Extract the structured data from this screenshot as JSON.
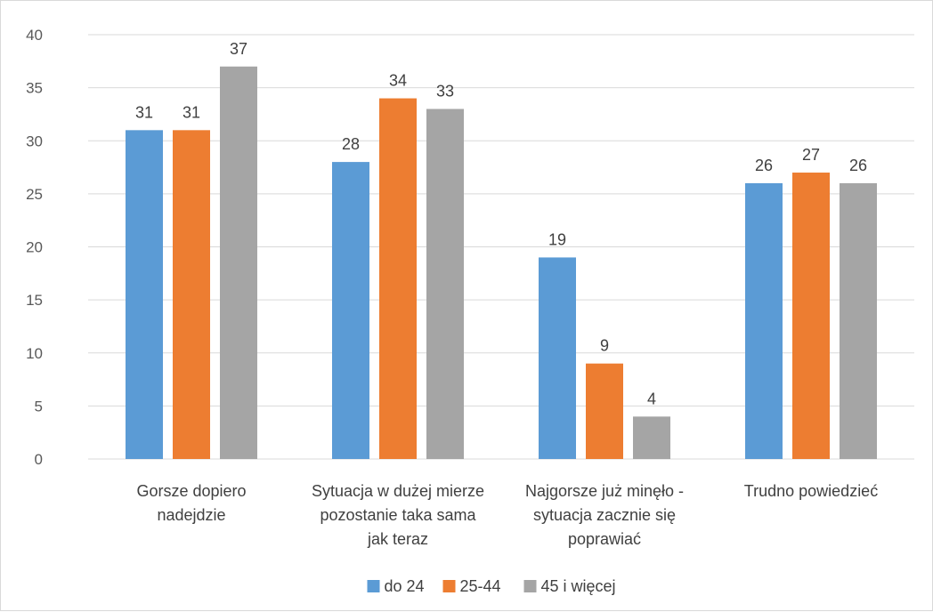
{
  "chart_data": {
    "type": "bar",
    "categories": [
      [
        "Gorsze dopiero",
        "nadejdzie"
      ],
      [
        "Sytuacja w dużej mierze",
        "pozostanie taka sama",
        "jak teraz"
      ],
      [
        "Najgorsze już minęło -",
        "sytuacja zacznie się",
        "poprawiać"
      ],
      [
        "Trudno powiedzieć"
      ]
    ],
    "series": [
      {
        "name": "do 24",
        "values": [
          31,
          28,
          19,
          26
        ],
        "color": "#5b9bd5"
      },
      {
        "name": "25-44",
        "values": [
          31,
          34,
          9,
          27
        ],
        "color": "#ed7d31"
      },
      {
        "name": "45 i więcej",
        "values": [
          37,
          33,
          4,
          26
        ],
        "color": "#a5a5a5"
      }
    ],
    "ylim": [
      0,
      40
    ],
    "yticks": [
      0,
      5,
      10,
      15,
      20,
      25,
      30,
      35,
      40
    ],
    "grid": true,
    "legend": "bottom",
    "data_labels": true,
    "gridline_color": "#d9d9d9"
  }
}
